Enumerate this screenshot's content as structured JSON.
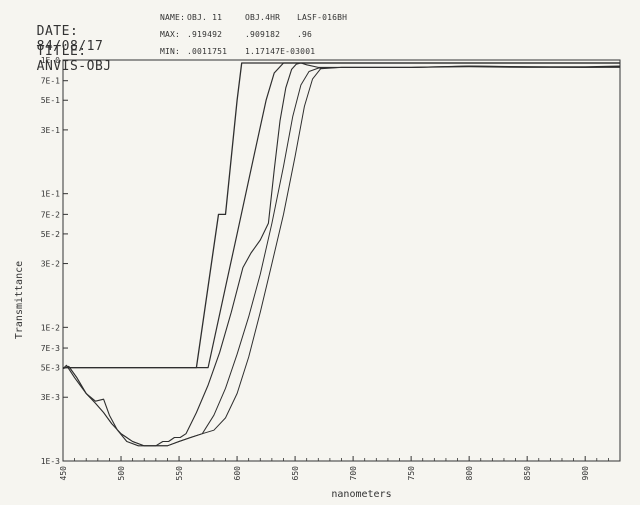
{
  "header": {
    "date_label": "DATE:",
    "date_value": "84/08/17",
    "title_label": "TITLE:",
    "title_value": "ANVIS-OBJ",
    "name_label": "NAME:",
    "names": [
      "OBJ. 11",
      "OBJ.4HR",
      "LASF-016BH"
    ],
    "max_label": "MAX:",
    "max_values": [
      ".919492",
      ".909182",
      ".96"
    ],
    "min_label": "MIN:",
    "min_values": [
      ".0011751",
      "1.17147E-03001"
    ]
  },
  "chart_data": {
    "type": "line",
    "xlabel": "nanometers",
    "ylabel": "Transmittance",
    "xlim": [
      450,
      930
    ],
    "ylim": [
      0.001,
      1
    ],
    "yscale": "log",
    "grid": false,
    "x_ticks": [
      450,
      500,
      550,
      600,
      650,
      700,
      750,
      800,
      850,
      900
    ],
    "x_tick_labels": [
      "450",
      "500",
      "550",
      "600",
      "650",
      "700",
      "750",
      "800",
      "850",
      "900"
    ],
    "y_ticks": [
      1,
      0.7,
      0.5,
      0.3,
      0.1,
      0.07,
      0.05,
      0.03,
      0.01,
      0.007,
      0.005,
      0.003,
      0.001
    ],
    "y_tick_labels": [
      "1E 0",
      "7E-1",
      "5E-1",
      "3E-1",
      "1E-1",
      "7E-2",
      "5E-2",
      "3E-2",
      "1E-2",
      "7E-3",
      "5E-3",
      "3E-3",
      "1E-3"
    ],
    "series": [
      {
        "x": [
          450,
          548,
          548,
          565,
          565,
          584,
          584,
          590,
          600,
          604,
          930
        ],
        "y": [
          0.005,
          0.005,
          0.005,
          0.005,
          0.005,
          0.07,
          0.07,
          0.07,
          0.5,
          0.95,
          0.95
        ]
      },
      {
        "x": [
          450,
          565,
          565,
          575,
          590,
          600,
          615,
          625,
          632,
          640,
          930
        ],
        "y": [
          0.005,
          0.005,
          0.005,
          0.005,
          0.02,
          0.05,
          0.2,
          0.5,
          0.8,
          0.95,
          0.95
        ]
      },
      {
        "x": [
          450,
          453,
          460,
          470,
          478,
          485,
          490,
          497,
          505,
          515,
          523,
          530,
          536,
          541,
          546,
          551,
          556,
          565,
          575,
          585,
          595,
          605,
          612,
          620,
          627,
          632,
          637,
          642,
          647,
          651,
          655,
          660,
          670,
          680,
          700,
          750,
          800,
          850,
          900,
          930
        ],
        "y": [
          0.0049,
          0.0052,
          0.0042,
          0.0032,
          0.0028,
          0.0029,
          0.0022,
          0.0017,
          0.0014,
          0.0013,
          0.0013,
          0.0013,
          0.0014,
          0.0014,
          0.0015,
          0.0015,
          0.0016,
          0.0023,
          0.0037,
          0.0065,
          0.013,
          0.028,
          0.036,
          0.045,
          0.06,
          0.15,
          0.35,
          0.62,
          0.85,
          0.93,
          0.95,
          0.92,
          0.88,
          0.88,
          0.88,
          0.88,
          0.9,
          0.89,
          0.89,
          0.9
        ]
      },
      {
        "x": [
          450,
          455,
          462,
          470,
          478,
          485,
          492,
          500,
          510,
          520,
          530,
          540,
          550,
          560,
          570,
          580,
          590,
          600,
          610,
          620,
          630,
          640,
          648,
          655,
          662,
          670,
          690,
          750,
          800,
          850,
          900,
          930
        ],
        "y": [
          0.0049,
          0.0051,
          0.0042,
          0.0032,
          0.0027,
          0.0023,
          0.0019,
          0.0016,
          0.0014,
          0.0013,
          0.0013,
          0.0013,
          0.0014,
          0.0015,
          0.0016,
          0.0022,
          0.0035,
          0.0063,
          0.012,
          0.025,
          0.06,
          0.16,
          0.38,
          0.65,
          0.82,
          0.87,
          0.88,
          0.88,
          0.89,
          0.88,
          0.88,
          0.88
        ]
      },
      {
        "x": [
          450,
          455,
          462,
          470,
          478,
          485,
          492,
          500,
          510,
          520,
          530,
          540,
          550,
          560,
          570,
          580,
          590,
          600,
          610,
          620,
          630,
          640,
          650,
          658,
          665,
          672,
          690,
          750,
          800,
          850,
          900,
          930
        ],
        "y": [
          0.0049,
          0.0051,
          0.0042,
          0.0032,
          0.0027,
          0.0023,
          0.0019,
          0.0016,
          0.0014,
          0.0013,
          0.0013,
          0.0013,
          0.0014,
          0.0015,
          0.0016,
          0.0017,
          0.0021,
          0.0032,
          0.006,
          0.013,
          0.03,
          0.07,
          0.19,
          0.45,
          0.72,
          0.86,
          0.88,
          0.88,
          0.9,
          0.89,
          0.88,
          0.89
        ]
      }
    ]
  }
}
